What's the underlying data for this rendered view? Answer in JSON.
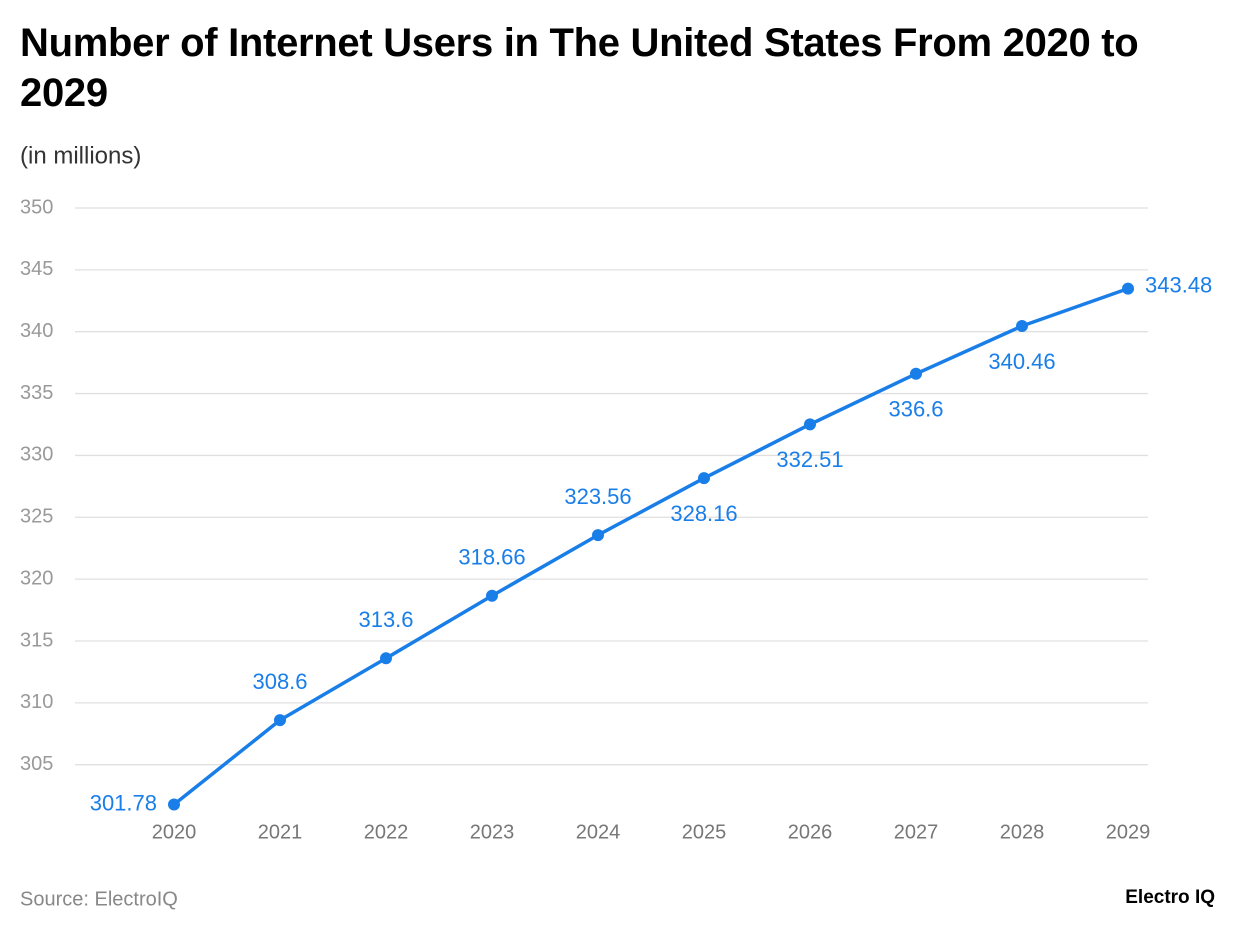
{
  "chart_data": {
    "type": "line",
    "title": "Number of Internet Users in The United States From 2020 to 2029",
    "subtitle": "(in millions)",
    "source": "Source: ElectroIQ",
    "logo": "Electro IQ",
    "categories": [
      "2020",
      "2021",
      "2022",
      "2023",
      "2024",
      "2025",
      "2026",
      "2027",
      "2028",
      "2029"
    ],
    "series": [
      {
        "name": "Internet users",
        "color": "#1a7ee8",
        "values": [
          301.78,
          308.6,
          313.6,
          318.66,
          323.56,
          328.16,
          332.51,
          336.6,
          340.46,
          343.48
        ]
      }
    ],
    "ylim": [
      301.5,
      350
    ],
    "yticks": [
      305,
      310,
      315,
      320,
      325,
      330,
      335,
      340,
      345,
      350
    ],
    "grid": true
  }
}
